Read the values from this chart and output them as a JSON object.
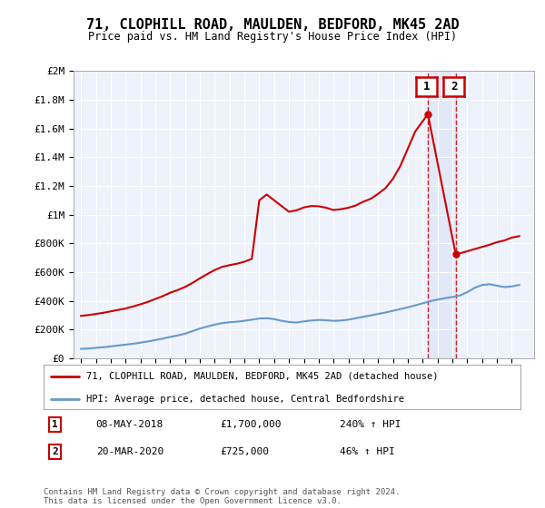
{
  "title": "71, CLOPHILL ROAD, MAULDEN, BEDFORD, MK45 2AD",
  "subtitle": "Price paid vs. HM Land Registry's House Price Index (HPI)",
  "ylabel_ticks": [
    "£0",
    "£200K",
    "£400K",
    "£600K",
    "£800K",
    "£1M",
    "£1.2M",
    "£1.4M",
    "£1.6M",
    "£1.8M",
    "£2M"
  ],
  "ytick_values": [
    0,
    200000,
    400000,
    600000,
    800000,
    1000000,
    1200000,
    1400000,
    1600000,
    1800000,
    2000000
  ],
  "hpi_color": "#6699cc",
  "price_color": "#cc0000",
  "dashed_color": "#cc0000",
  "background_color": "#eef2fa",
  "legend_label_price": "71, CLOPHILL ROAD, MAULDEN, BEDFORD, MK45 2AD (detached house)",
  "legend_label_hpi": "HPI: Average price, detached house, Central Bedfordshire",
  "annotation1_label": "1",
  "annotation1_date": "08-MAY-2018",
  "annotation1_price": "£1,700,000",
  "annotation1_pct": "240% ↑ HPI",
  "annotation2_label": "2",
  "annotation2_date": "20-MAR-2020",
  "annotation2_price": "£725,000",
  "annotation2_pct": "46% ↑ HPI",
  "footer": "Contains HM Land Registry data © Crown copyright and database right 2024.\nThis data is licensed under the Open Government Licence v3.0.",
  "sale1_year": 2018.35,
  "sale1_price": 1700000,
  "sale2_year": 2020.22,
  "sale2_price": 725000,
  "xlim_left": 1994.5,
  "xlim_right": 2025.5,
  "ylim_top": 2000000
}
